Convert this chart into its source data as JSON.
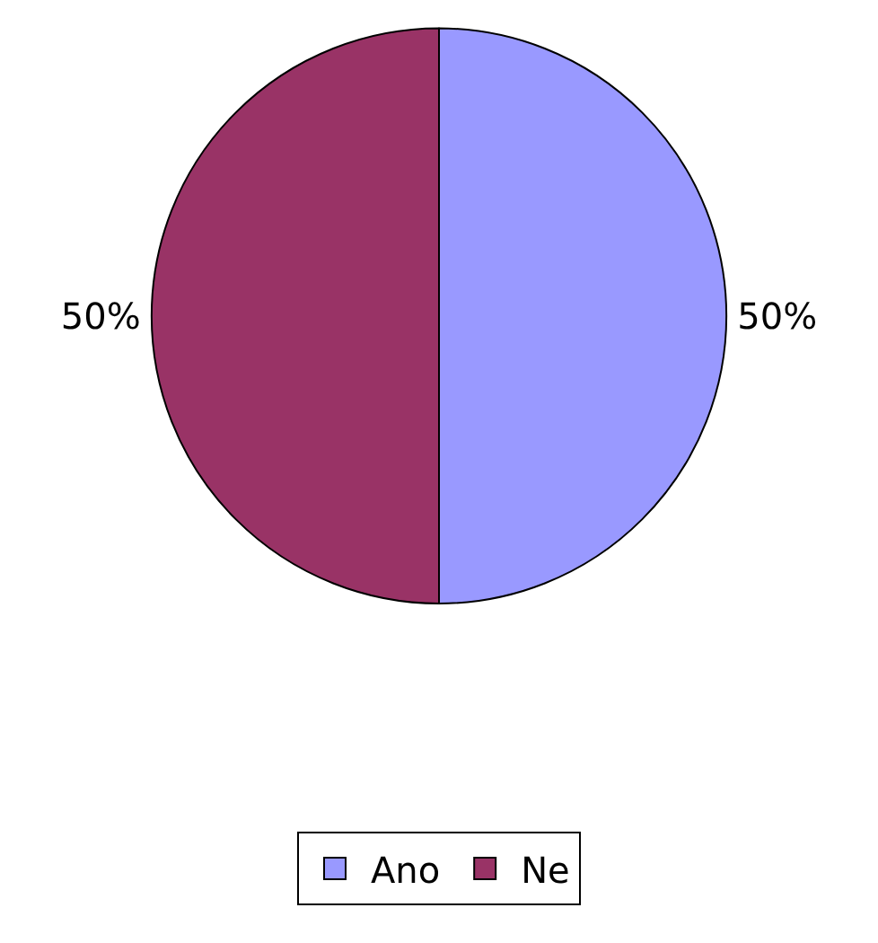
{
  "chart_data": {
    "type": "pie",
    "categories": [
      "Ano",
      "Ne"
    ],
    "values": [
      50,
      50
    ],
    "colors": [
      "#9999ff",
      "#993366"
    ],
    "value_labels": [
      "50%",
      "50%"
    ],
    "legend": "bottom"
  }
}
